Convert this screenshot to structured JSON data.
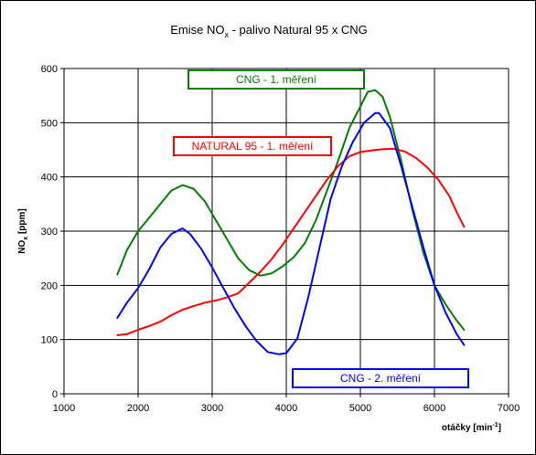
{
  "chart_data": {
    "type": "line",
    "title": "Emise NO",
    "title_sub": "x",
    "title_rest": " - palivo Natural 95 x CNG",
    "ylabel": "NO",
    "ylabel_sub": "x",
    "ylabel_rest": " [ppm]",
    "xlabel": "otáčky [min",
    "xlabel_sup": "-1",
    "xlabel_rest": "]",
    "xlim": [
      1000,
      7000
    ],
    "ylim": [
      0,
      600
    ],
    "xticks": [
      "1000",
      "2000",
      "3000",
      "4000",
      "5000",
      "6000",
      "7000"
    ],
    "yticks": [
      "0",
      "100",
      "200",
      "300",
      "400",
      "500",
      "600"
    ],
    "grid": true,
    "series": [
      {
        "name": "CNG - 1. měření",
        "color": "#008000",
        "x": [
          1720,
          1850,
          2000,
          2150,
          2300,
          2450,
          2600,
          2750,
          2900,
          3050,
          3200,
          3350,
          3500,
          3650,
          3800,
          3950,
          4100,
          4250,
          4400,
          4550,
          4700,
          4850,
          5000,
          5100,
          5200,
          5300,
          5400,
          5550,
          5700,
          5850,
          6000,
          6150,
          6300,
          6400
        ],
        "values": [
          220,
          265,
          300,
          325,
          350,
          375,
          385,
          378,
          355,
          320,
          285,
          250,
          228,
          218,
          222,
          235,
          252,
          278,
          320,
          375,
          430,
          490,
          530,
          557,
          560,
          548,
          510,
          430,
          340,
          260,
          200,
          165,
          135,
          118
        ]
      },
      {
        "name": "NATURAL 95 - 1. měření",
        "color": "#ff0000",
        "x": [
          1720,
          1850,
          2000,
          2150,
          2300,
          2450,
          2600,
          2750,
          2900,
          3050,
          3200,
          3350,
          3500,
          3650,
          3800,
          3950,
          4100,
          4250,
          4400,
          4550,
          4700,
          4850,
          5000,
          5150,
          5300,
          5450,
          5600,
          5750,
          5900,
          6050,
          6200,
          6300,
          6400
        ],
        "values": [
          108,
          110,
          118,
          125,
          133,
          145,
          155,
          162,
          168,
          172,
          178,
          185,
          205,
          225,
          248,
          275,
          305,
          335,
          365,
          395,
          420,
          438,
          446,
          449,
          451,
          452,
          447,
          435,
          418,
          395,
          365,
          335,
          308
        ]
      },
      {
        "name": "CNG - 2. měření",
        "color": "#0000ff",
        "x": [
          1720,
          1850,
          2000,
          2150,
          2300,
          2450,
          2600,
          2700,
          2850,
          3000,
          3150,
          3300,
          3450,
          3600,
          3750,
          3900,
          4000,
          4150,
          4300,
          4450,
          4600,
          4750,
          4900,
          5050,
          5200,
          5250,
          5400,
          5550,
          5700,
          5850,
          6000,
          6150,
          6300,
          6400
        ],
        "values": [
          140,
          168,
          195,
          230,
          270,
          295,
          305,
          295,
          268,
          233,
          195,
          158,
          125,
          97,
          77,
          73,
          75,
          102,
          180,
          270,
          360,
          420,
          465,
          500,
          518,
          518,
          490,
          420,
          345,
          270,
          200,
          150,
          110,
          90
        ]
      }
    ],
    "annotations": [
      {
        "text": "CNG - 1. měření",
        "color": "#008000"
      },
      {
        "text": "NATURAL 95 - 1. měření",
        "color": "#ff0000"
      },
      {
        "text": "CNG - 2. měření",
        "color": "#0000ff"
      }
    ]
  }
}
